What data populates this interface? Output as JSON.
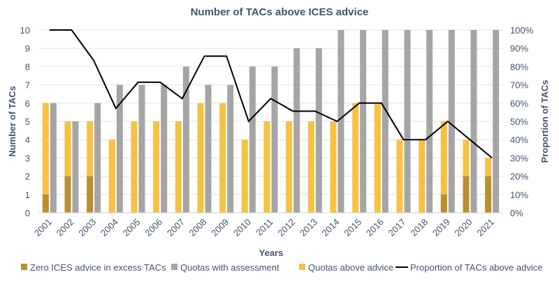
{
  "chart_data": {
    "type": "bar",
    "title": "Number of TACs above ICES advice",
    "xlabel": "Years",
    "ylabel": "Number of TACs",
    "y2label": "Proportion of TACs",
    "ylim": [
      0,
      10
    ],
    "y2lim": [
      0,
      100
    ],
    "yticks": [
      "0",
      "1",
      "2",
      "3",
      "4",
      "5",
      "6",
      "7",
      "8",
      "9",
      "10"
    ],
    "y2ticks": [
      "0%",
      "10%",
      "20%",
      "30%",
      "40%",
      "50%",
      "60%",
      "70%",
      "80%",
      "90%",
      "100%"
    ],
    "grid": true,
    "legend_position": "bottom",
    "categories": [
      "2001",
      "2002",
      "2003",
      "2004",
      "2005",
      "2006",
      "2007",
      "2008",
      "2009",
      "2010",
      "2011",
      "2012",
      "2013",
      "2014",
      "2015",
      "2016",
      "2017",
      "2018",
      "2019",
      "2020",
      "2021"
    ],
    "series": [
      {
        "name": "Zero ICES advice in excess TACs",
        "type": "bar-overlay",
        "color": "#b8902e",
        "values": [
          1,
          2,
          2,
          0,
          0,
          0,
          0,
          0,
          0,
          0,
          0,
          0,
          0,
          0,
          0,
          0,
          0,
          0,
          1,
          2,
          2
        ]
      },
      {
        "name": "Quotas with assessment",
        "type": "bar",
        "color": "#a5a5a5",
        "values": [
          6,
          5,
          6,
          7,
          7,
          7,
          8,
          7,
          7,
          8,
          8,
          9,
          9,
          10,
          10,
          10,
          10,
          10,
          10,
          10,
          10
        ]
      },
      {
        "name": "Quotas above advice",
        "type": "bar",
        "color": "#f5c242",
        "values": [
          6,
          5,
          5,
          4,
          5,
          5,
          5,
          6,
          6,
          4,
          5,
          5,
          5,
          5,
          6,
          6,
          4,
          4,
          5,
          4,
          3
        ]
      },
      {
        "name": "Proportion of TACs above advice",
        "type": "line",
        "axis": "right",
        "color": "#000000",
        "values": [
          100,
          100,
          83.3,
          57.1,
          71.4,
          71.4,
          62.5,
          85.7,
          85.7,
          50,
          62.5,
          55.6,
          55.6,
          50,
          60,
          60,
          40,
          40,
          50,
          40,
          30
        ]
      }
    ]
  }
}
